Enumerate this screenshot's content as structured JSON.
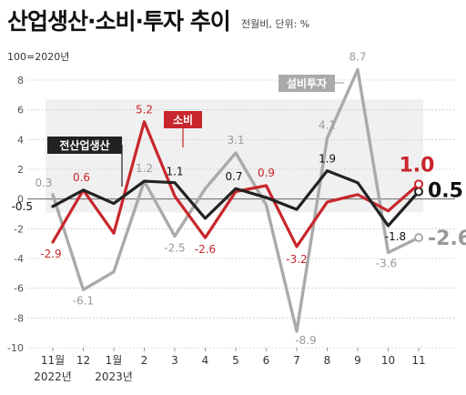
{
  "header": {
    "title": "산업생산·소비·투자 추이",
    "note": "전월비, 단위: %",
    "base_note": "100=2020년"
  },
  "chart_data": {
    "type": "line",
    "x": [
      "11월",
      "12",
      "1월",
      "2",
      "3",
      "4",
      "5",
      "6",
      "7",
      "8",
      "9",
      "10",
      "11"
    ],
    "x_years": [
      "2022년",
      "2023년"
    ],
    "ylim": [
      -10,
      8
    ],
    "yticks": [
      -10,
      -8,
      -6,
      -4,
      -2,
      0,
      2,
      4,
      6,
      8
    ],
    "series": [
      {
        "name": "전산업생산",
        "color": "#222222",
        "values": [
          -0.5,
          0.6,
          -0.3,
          1.2,
          1.1,
          -1.3,
          0.7,
          0.1,
          -0.7,
          1.9,
          1.1,
          -1.8,
          0.5
        ],
        "labels": [
          "-0.5",
          "",
          "",
          "",
          "1.1",
          "",
          "0.7",
          "",
          "",
          "1.9",
          "",
          "-1.8",
          "0.5"
        ]
      },
      {
        "name": "소비",
        "color": "#c8262c",
        "values": [
          -2.9,
          0.6,
          -2.3,
          5.2,
          0.2,
          -2.6,
          0.5,
          0.9,
          -3.2,
          -0.2,
          0.3,
          -0.8,
          1.0
        ],
        "labels": [
          "-2.9",
          "0.6",
          "",
          "5.2",
          "",
          "-2.6",
          "",
          "0.9",
          "-3.2",
          "",
          "",
          "",
          "1.0"
        ]
      },
      {
        "name": "설비투자",
        "color": "#aaaaaa",
        "values": [
          0.3,
          -6.1,
          -4.9,
          1.2,
          -2.5,
          0.7,
          3.1,
          -0.4,
          -8.9,
          4.1,
          8.7,
          -3.6,
          -2.6
        ],
        "labels": [
          "0.3",
          "-6.1",
          "",
          "1.2",
          "-2.5",
          "",
          "3.1",
          "",
          "-8.9",
          "4.1",
          "8.7",
          "-3.6",
          "-2.6"
        ]
      }
    ]
  }
}
